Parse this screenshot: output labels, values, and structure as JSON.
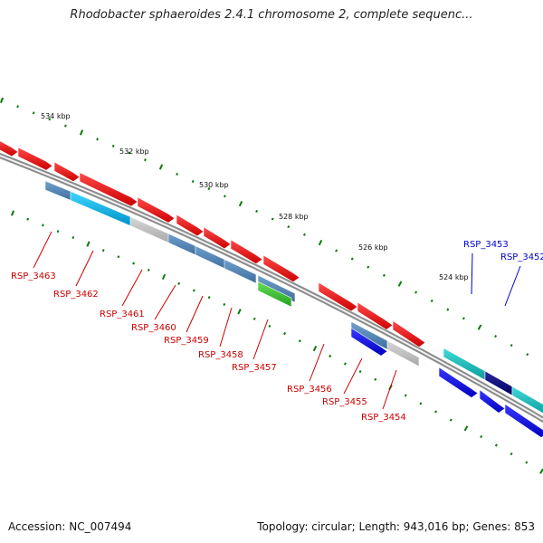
{
  "title": "Rhodobacter sphaeroides 2.4.1 chromosome 2, complete sequenc...",
  "footer": {
    "accession": "Accession: NC_007494",
    "summary": "Topology: circular; Length: 943,016 bp; Genes: 853"
  },
  "colors": {
    "backbone": "#7a7a7a",
    "tick": "#0a7a0a",
    "label_red": "#cc0000",
    "label_blue": "#0000cc"
  },
  "scale_labels": [
    "534 kbp",
    "532 kbp",
    "530 kbp",
    "528 kbp",
    "526 kbp",
    "524 kbp"
  ],
  "gene_labels": [
    {
      "text": "RSP_3463",
      "color": "#cc0000"
    },
    {
      "text": "RSP_3462",
      "color": "#cc0000"
    },
    {
      "text": "RSP_3461",
      "color": "#cc0000"
    },
    {
      "text": "RSP_3460",
      "color": "#cc0000"
    },
    {
      "text": "RSP_3459",
      "color": "#cc0000"
    },
    {
      "text": "RSP_3458",
      "color": "#cc0000"
    },
    {
      "text": "RSP_3457",
      "color": "#cc0000"
    },
    {
      "text": "RSP_3456",
      "color": "#cc0000"
    },
    {
      "text": "RSP_3455",
      "color": "#cc0000"
    },
    {
      "text": "RSP_3454",
      "color": "#cc0000"
    },
    {
      "text": "RSP_3453",
      "color": "#0000cc"
    },
    {
      "text": "RSP_3452",
      "color": "#0000cc"
    }
  ]
}
